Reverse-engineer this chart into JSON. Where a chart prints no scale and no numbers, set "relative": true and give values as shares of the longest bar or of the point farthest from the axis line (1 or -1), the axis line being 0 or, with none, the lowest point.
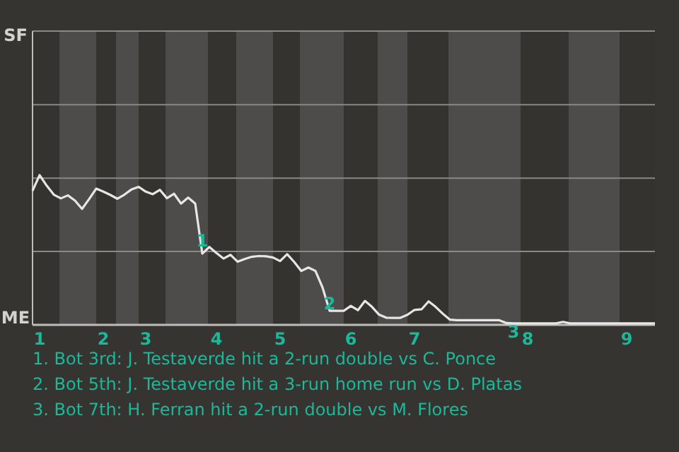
{
  "chart_data": {
    "type": "line",
    "relative": true,
    "categories": [
      null,
      "1",
      null,
      null,
      null,
      null,
      null,
      null,
      null,
      null,
      "2",
      null,
      null,
      null,
      null,
      null,
      "3",
      null,
      null,
      null,
      null,
      null,
      null,
      null,
      null,
      null,
      "4",
      null,
      null,
      null,
      null,
      null,
      null,
      null,
      null,
      "5",
      null,
      null,
      null,
      null,
      null,
      null,
      null,
      null,
      null,
      "6",
      null,
      null,
      null,
      null,
      null,
      null,
      null,
      null,
      "7",
      null,
      null,
      null,
      null,
      null,
      null,
      null,
      null,
      null,
      null,
      null,
      null,
      null,
      null,
      null,
      "8",
      null,
      null,
      null,
      null,
      null,
      null,
      null,
      null,
      null,
      null,
      null,
      null,
      null,
      "9",
      null,
      null,
      null,
      null
    ],
    "series": [
      {
        "color": "#e6e6e6",
        "values": [
          0.896,
          1,
          0.93,
          0.87,
          0.845,
          0.865,
          0.83,
          0.775,
          0.84,
          0.91,
          0.89,
          0.868,
          0.842,
          0.87,
          0.905,
          0.922,
          0.89,
          0.873,
          0.902,
          0.846,
          0.876,
          0.81,
          0.85,
          0.81,
          0.476,
          0.52,
          0.48,
          0.443,
          0.468,
          0.422,
          0.44,
          0.455,
          0.46,
          0.458,
          0.45,
          0.426,
          0.472,
          0.42,
          0.36,
          0.383,
          0.36,
          0.25,
          0.094,
          0.094,
          0.094,
          0.127,
          0.098,
          0.16,
          0.12,
          0.068,
          0.048,
          0.047,
          0.047,
          0.067,
          0.1,
          0.104,
          0.157,
          0.12,
          0.075,
          0.035,
          0.031,
          0.031,
          0.031,
          0.031,
          0.031,
          0.031,
          0.031,
          0.012,
          0.01,
          0.01,
          0.01,
          0.01,
          0.01,
          0.01,
          0.01,
          0.02,
          0.01,
          0.01,
          0.01,
          0.01,
          0.01,
          0.01,
          0.01,
          0.01,
          0.01,
          0.01,
          0.01,
          0.01,
          0.01
        ]
      }
    ],
    "ref_lines": [
      {
        "axis": "y",
        "value": 0.49,
        "color": "#8a8987"
      },
      {
        "axis": "y",
        "value": 0.98,
        "color": "#8a8987"
      },
      {
        "axis": "y",
        "value": 1.47,
        "color": "#8a8987"
      }
    ],
    "annotations": [
      "SF",
      "ME",
      {
        "text": "1",
        "y": 0.62
      },
      {
        "text": "2",
        "y": 0.198
      },
      {
        "text": "3",
        "y": 0.01
      },
      "1. Bot 3rd: J. Testaverde hit a 2-run double vs C. Ponce",
      "2. Bot 5th: J. Testaverde hit a 3-run home run vs D. Platas",
      "3. Bot 7th: H. Ferran hit a 2-run double vs M. Flores"
    ]
  }
}
